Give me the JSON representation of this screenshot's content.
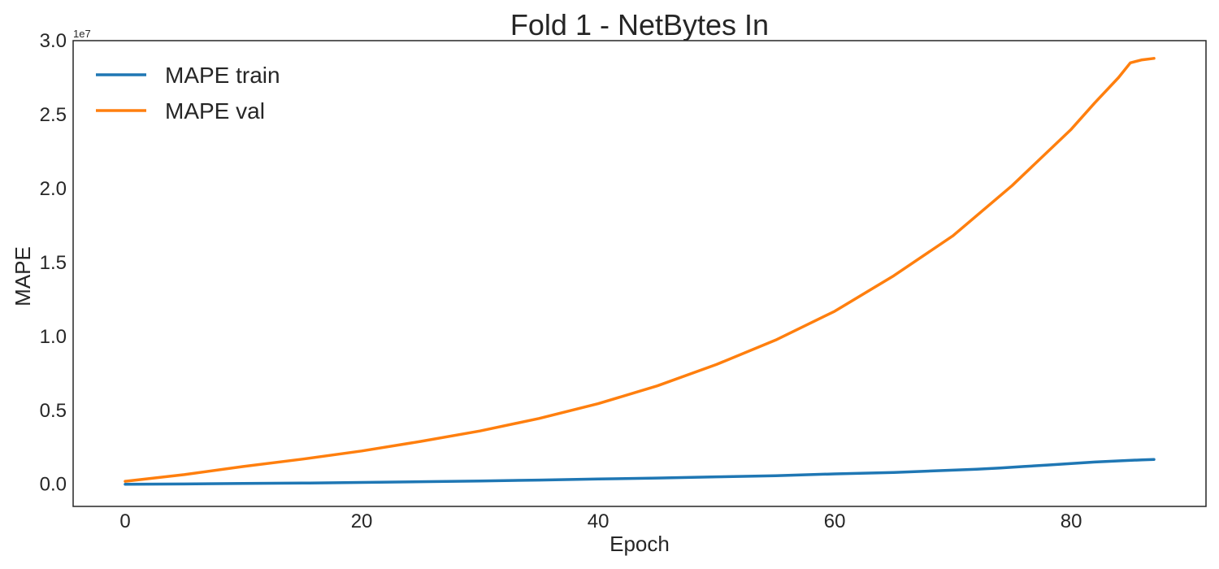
{
  "chart_data": {
    "type": "line",
    "title": "Fold 1 - NetBytes In",
    "xlabel": "Epoch",
    "ylabel": "MAPE",
    "y_offset_label": "1e7",
    "xlim": [
      -4.4,
      91.4
    ],
    "ylim": [
      -0.15,
      3.0
    ],
    "y_scale_factor": 10000000,
    "xticks": [
      0,
      20,
      40,
      60,
      80
    ],
    "xtick_labels": [
      "0",
      "20",
      "40",
      "60",
      "80"
    ],
    "yticks": [
      0.0,
      0.5,
      1.0,
      1.5,
      2.0,
      2.5,
      3.0
    ],
    "ytick_labels": [
      "0.0",
      "0.5",
      "1.0",
      "1.5",
      "2.0",
      "2.5",
      "3.0"
    ],
    "grid": false,
    "legend_position": "top-left",
    "series": [
      {
        "name": "MAPE train",
        "color": "#1f77b4",
        "x": [
          0,
          5,
          10,
          15,
          20,
          25,
          30,
          35,
          40,
          45,
          50,
          55,
          60,
          65,
          70,
          72,
          74,
          76,
          78,
          80,
          82,
          84,
          86,
          87
        ],
        "y": [
          0.0,
          0.002,
          0.005,
          0.008,
          0.012,
          0.017,
          0.022,
          0.028,
          0.035,
          0.042,
          0.05,
          0.058,
          0.07,
          0.08,
          0.095,
          0.102,
          0.11,
          0.12,
          0.13,
          0.14,
          0.15,
          0.158,
          0.165,
          0.168
        ]
      },
      {
        "name": "MAPE val",
        "color": "#ff7f0e",
        "x": [
          0,
          5,
          10,
          15,
          20,
          25,
          30,
          35,
          40,
          45,
          50,
          55,
          60,
          65,
          70,
          75,
          80,
          82,
          84,
          85,
          86,
          87
        ],
        "y": [
          0.02,
          0.065,
          0.12,
          0.17,
          0.225,
          0.29,
          0.36,
          0.445,
          0.545,
          0.665,
          0.81,
          0.975,
          1.17,
          1.41,
          1.68,
          2.02,
          2.4,
          2.58,
          2.75,
          2.85,
          2.87,
          2.88
        ]
      }
    ]
  }
}
